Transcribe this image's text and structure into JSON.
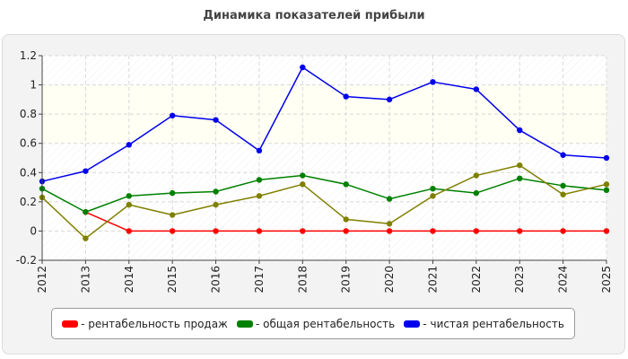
{
  "chart_data": {
    "type": "line",
    "title": "Динамика показателей прибыли",
    "xlabel": "",
    "ylabel": "",
    "x": [
      "2012",
      "2013",
      "2014",
      "2015",
      "2016",
      "2017",
      "2018",
      "2019",
      "2020",
      "2021",
      "2022",
      "2023",
      "2024",
      "2025"
    ],
    "ylim": [
      -0.2,
      1.2
    ],
    "yticks": [
      "-0.2",
      "0",
      "0.2",
      "0.4",
      "0.6",
      "0.8",
      "1",
      "1.2"
    ],
    "grid": true,
    "legend_position": "bottom",
    "series": [
      {
        "name": "рентабельность продаж",
        "color": "#ff0000",
        "values": [
          null,
          0.13,
          0.0,
          0.0,
          0.0,
          0.0,
          0.0,
          0.0,
          0.0,
          0.0,
          0.0,
          0.0,
          0.0,
          0.0
        ]
      },
      {
        "name": "общая рентабельность",
        "color": "#008000",
        "values": [
          0.29,
          0.13,
          0.24,
          0.26,
          0.27,
          0.35,
          0.38,
          0.32,
          0.22,
          0.29,
          0.26,
          0.36,
          0.31,
          0.28
        ]
      },
      {
        "name": "чистая рентабельность",
        "color": "#0000ee",
        "values": [
          0.34,
          0.41,
          0.59,
          0.79,
          0.76,
          0.55,
          1.12,
          0.92,
          0.9,
          1.02,
          0.97,
          0.69,
          0.52,
          0.5
        ]
      },
      {
        "name": "",
        "color": "#808000",
        "values": [
          0.23,
          -0.05,
          0.18,
          0.11,
          0.18,
          0.24,
          0.32,
          0.08,
          0.05,
          0.24,
          0.38,
          0.45,
          0.25,
          0.32
        ]
      }
    ]
  },
  "legend": {
    "items": [
      {
        "label": "- рентабельность продаж",
        "color": "#ff0000"
      },
      {
        "label": "- общая рентабельность",
        "color": "#008000"
      },
      {
        "label": "- чистая рентабельность",
        "color": "#0000ee"
      }
    ]
  }
}
